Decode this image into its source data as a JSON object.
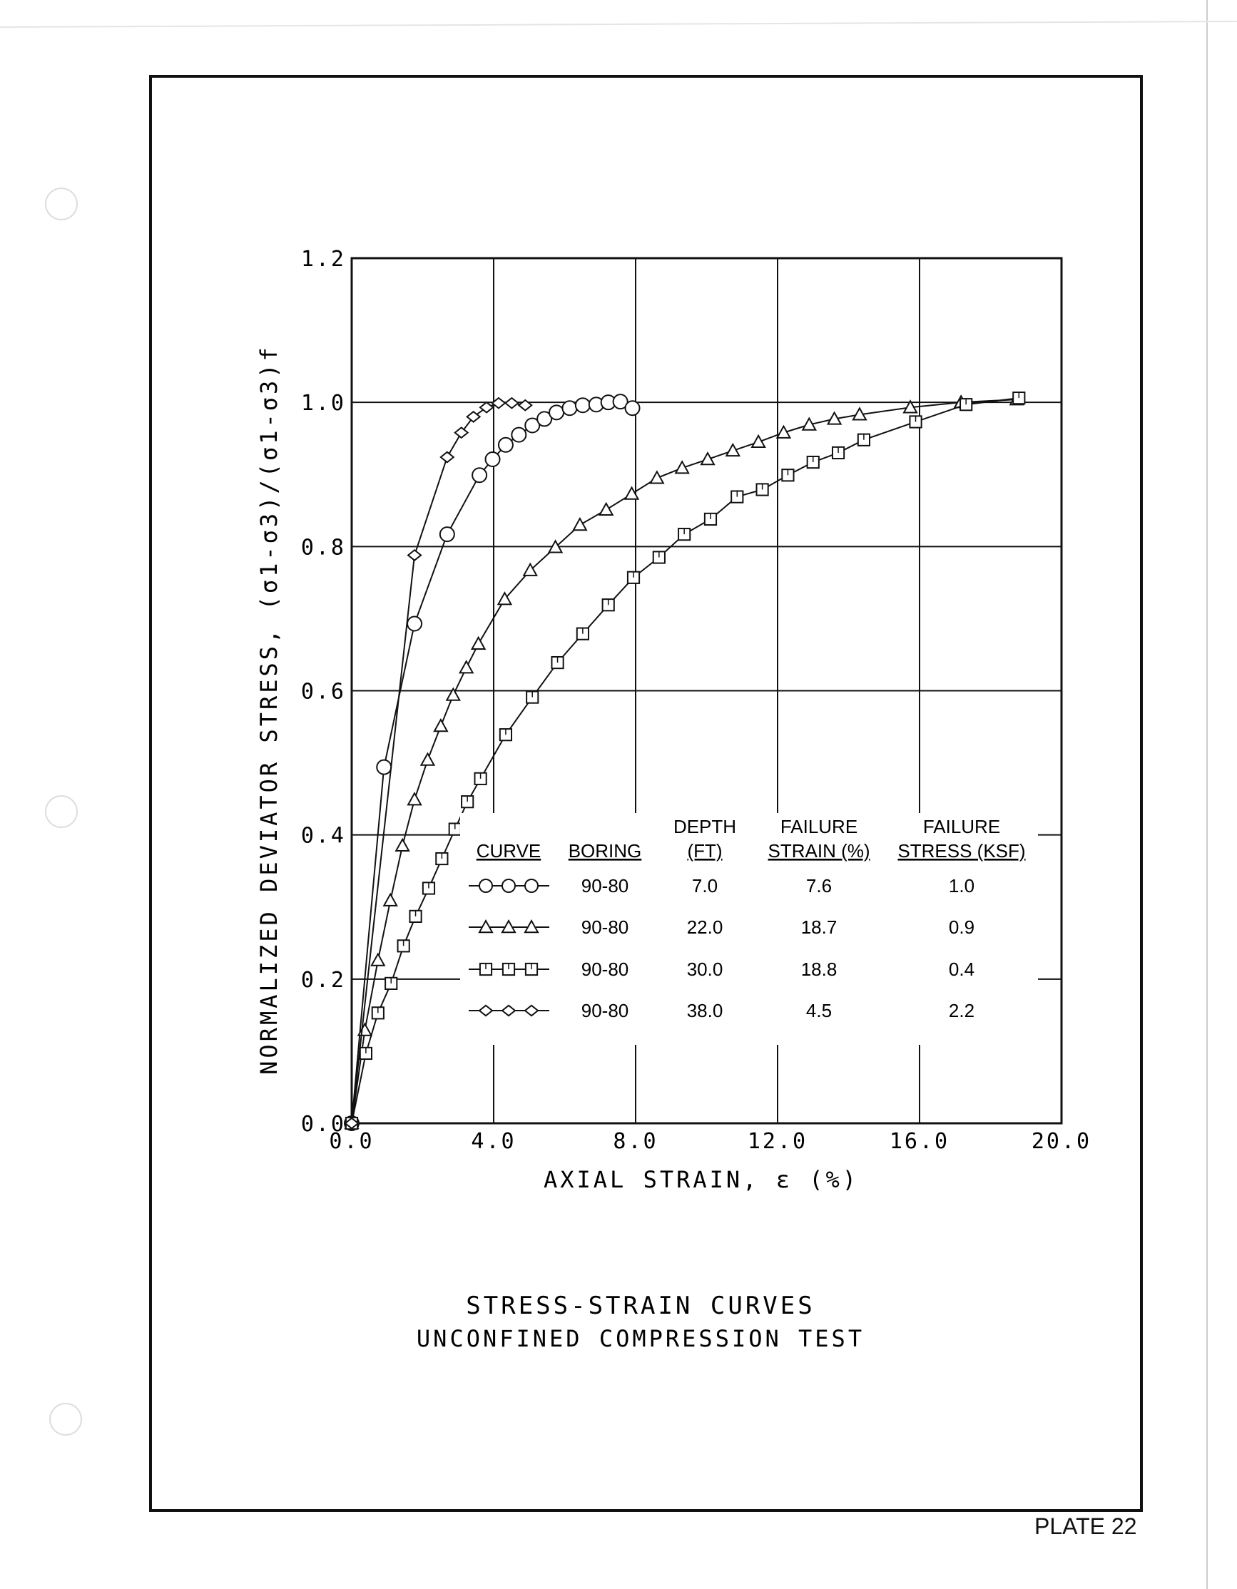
{
  "plate_label": "PLATE 22",
  "chart_data": {
    "type": "line",
    "title": "STRESS-STRAIN CURVES",
    "subtitle": "UNCONFINED COMPRESSION TEST",
    "xlabel": "AXIAL STRAIN, ε (%)",
    "ylabel": "NORMALIZED DEVIATOR STRESS, (σ1-σ3)/(σ1-σ3)f",
    "xlim": [
      0,
      20
    ],
    "ylim": [
      0,
      1.2
    ],
    "xticks": [
      "0.0",
      "4.0",
      "8.0",
      "12.0",
      "16.0",
      "20.0"
    ],
    "yticks": [
      "0.0",
      "0.2",
      "0.4",
      "0.6",
      "0.8",
      "1.0",
      "1.2"
    ],
    "grid": true,
    "legend_placement": "bottom-right",
    "legend_headers": {
      "curve": "CURVE",
      "boring": "BORING",
      "depth": [
        "DEPTH",
        "(FT)"
      ],
      "strain": [
        "FAILURE",
        "STRAIN (%)"
      ],
      "stress": [
        "FAILURE",
        "STRESS (KSF)"
      ]
    },
    "series": [
      {
        "marker": "circle",
        "boring": "90-80",
        "depth": "7.0",
        "failure_strain": "7.6",
        "failure_stress": "1.0",
        "x": [
          0,
          0.91,
          1.77,
          2.69,
          3.6,
          3.97,
          4.34,
          4.71,
          5.09,
          5.43,
          5.77,
          6.14,
          6.51,
          6.89,
          7.23,
          7.57,
          7.91
        ],
        "y": [
          0,
          0.494,
          0.693,
          0.817,
          0.899,
          0.921,
          0.941,
          0.955,
          0.968,
          0.977,
          0.986,
          0.992,
          0.996,
          0.997,
          1.0,
          1.001,
          0.992
        ]
      },
      {
        "marker": "triangle",
        "boring": "90-80",
        "depth": "22.0",
        "failure_strain": "18.7",
        "failure_stress": "0.9",
        "x": [
          0,
          0.37,
          0.74,
          1.09,
          1.43,
          1.77,
          2.14,
          2.51,
          2.86,
          3.23,
          3.57,
          4.31,
          5.03,
          5.74,
          6.43,
          7.17,
          7.89,
          8.6,
          9.31,
          10.03,
          10.74,
          11.46,
          12.17,
          12.89,
          13.6,
          14.31,
          15.74,
          17.17,
          18.74
        ],
        "y": [
          0,
          0.129,
          0.226,
          0.309,
          0.385,
          0.449,
          0.504,
          0.551,
          0.594,
          0.632,
          0.665,
          0.727,
          0.767,
          0.799,
          0.83,
          0.851,
          0.873,
          0.895,
          0.909,
          0.921,
          0.933,
          0.945,
          0.958,
          0.969,
          0.977,
          0.983,
          0.993,
          1.0,
          1.004
        ]
      },
      {
        "marker": "square",
        "boring": "90-80",
        "depth": "30.0",
        "failure_strain": "18.8",
        "failure_stress": "0.4",
        "x": [
          0,
          0.4,
          0.74,
          1.11,
          1.46,
          1.8,
          2.17,
          2.54,
          2.91,
          3.26,
          3.63,
          4.34,
          5.09,
          5.8,
          6.51,
          7.23,
          7.94,
          8.66,
          9.37,
          10.11,
          10.86,
          11.57,
          12.29,
          13.0,
          13.71,
          14.43,
          15.89,
          17.31,
          18.8
        ],
        "y": [
          0,
          0.097,
          0.153,
          0.194,
          0.246,
          0.287,
          0.326,
          0.367,
          0.408,
          0.446,
          0.478,
          0.539,
          0.591,
          0.639,
          0.679,
          0.719,
          0.757,
          0.785,
          0.817,
          0.838,
          0.869,
          0.879,
          0.899,
          0.917,
          0.93,
          0.948,
          0.973,
          0.997,
          1.006
        ]
      },
      {
        "marker": "diamond",
        "boring": "90-80",
        "depth": "38.0",
        "failure_strain": "4.5",
        "failure_stress": "2.2",
        "x": [
          0,
          1.77,
          2.69,
          3.09,
          3.43,
          3.8,
          4.14,
          4.51,
          4.89
        ],
        "y": [
          0,
          0.788,
          0.924,
          0.958,
          0.98,
          0.993,
          0.999,
          0.999,
          0.996
        ]
      }
    ]
  }
}
